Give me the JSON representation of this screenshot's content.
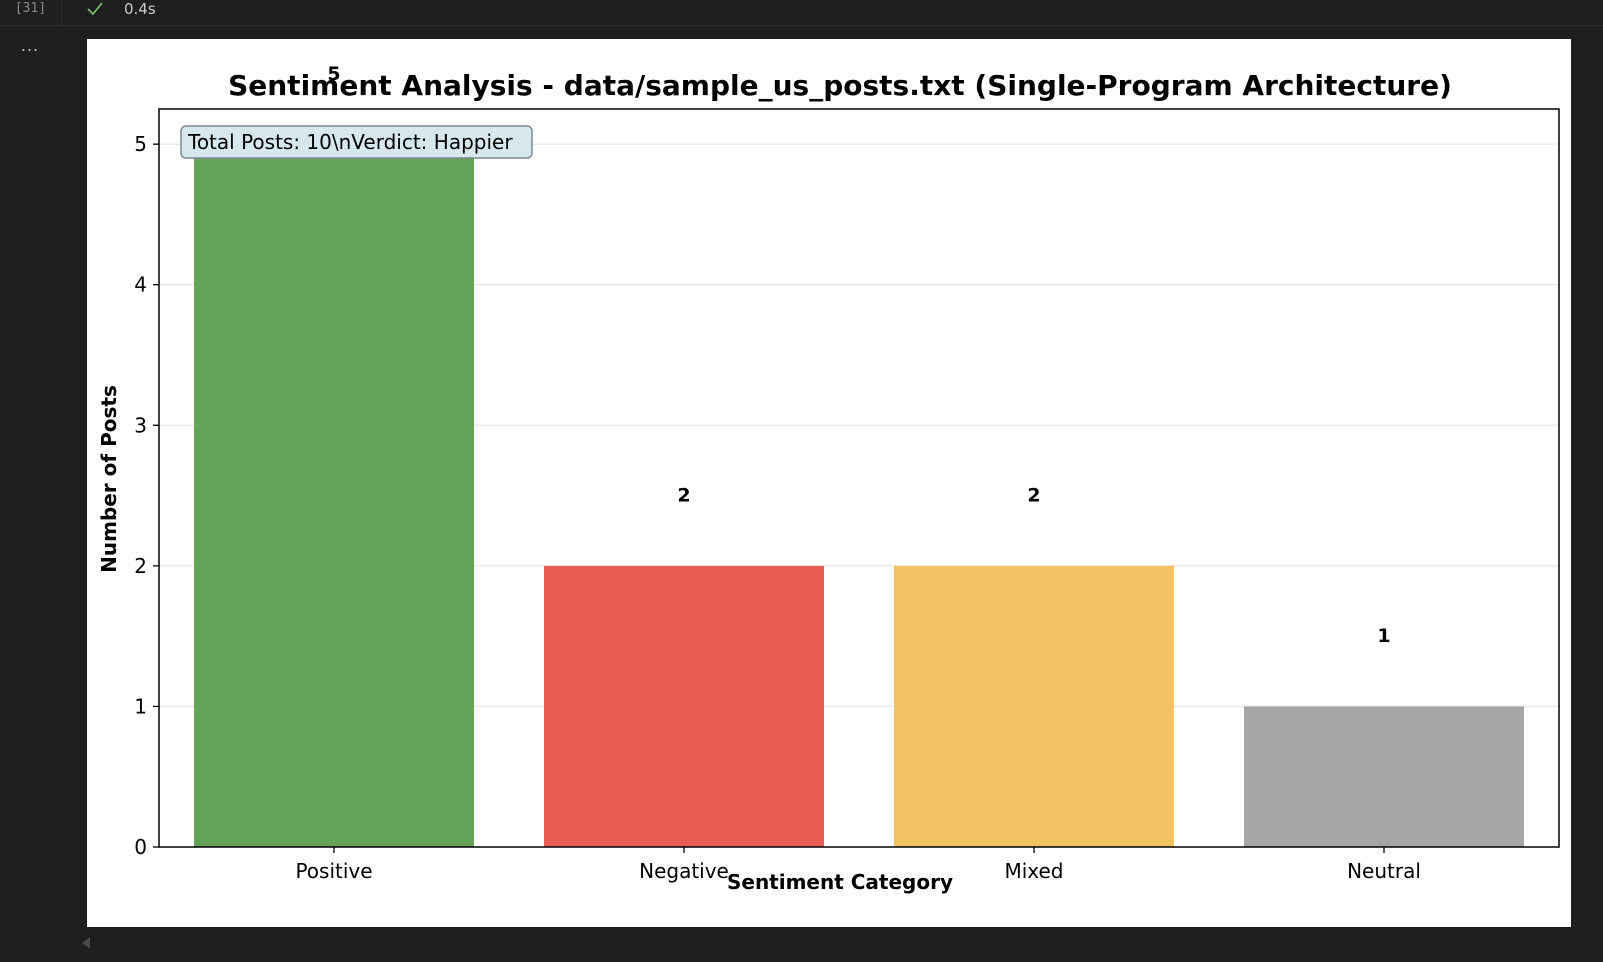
{
  "cell": {
    "execution_count": "[31]",
    "duration": "0.4s",
    "status_icon": "check-icon",
    "more_label": "...",
    "scroll_icon": "scroll-left-icon"
  },
  "chart_data": {
    "type": "bar",
    "title": "Sentiment Analysis - data/sample_us_posts.txt (Single-Program Architecture)",
    "xlabel": "Sentiment Category",
    "ylabel": "Number of Posts",
    "categories": [
      "Positive",
      "Negative",
      "Mixed",
      "Neutral"
    ],
    "values": [
      5,
      2,
      2,
      1
    ],
    "value_labels": [
      "5",
      "2",
      "2",
      "1"
    ],
    "colors": [
      "#65a358",
      "#e95c54",
      "#f2c263",
      "#a5a5a5"
    ],
    "ylim": [
      0,
      5.25
    ],
    "yticks": [
      0,
      1,
      2,
      3,
      4,
      5
    ],
    "ytick_labels": [
      "0",
      "1",
      "2",
      "3",
      "4",
      "5"
    ],
    "grid": true,
    "annotation": "Total Posts: 10\\nVerdict: Happier",
    "annotation_position": "top-left"
  }
}
